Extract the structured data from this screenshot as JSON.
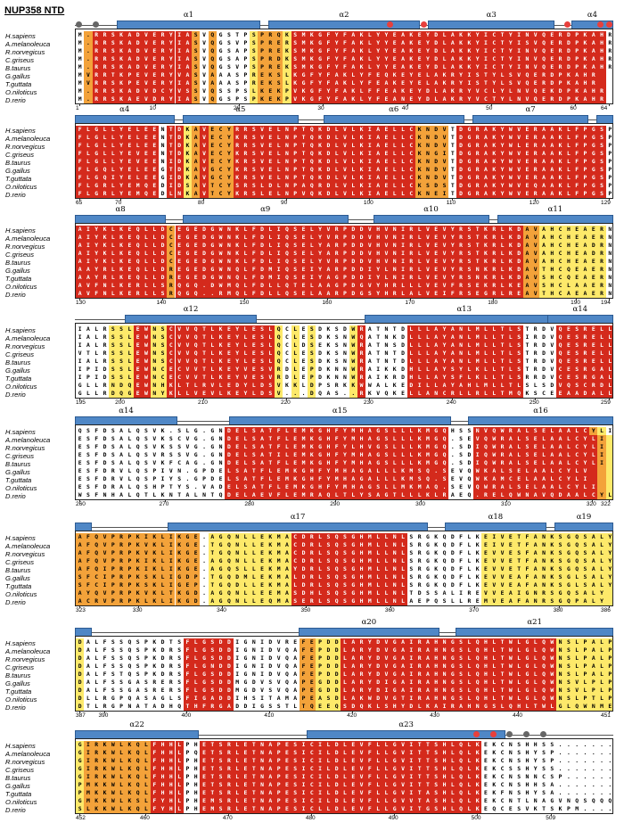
{
  "title": "NUP358 NTD",
  "species": [
    "H.sapiens",
    "A.melanoleuca",
    "R.norvegicus",
    "C.griseus",
    "B.taurus",
    "G.gallus",
    "T.guttata",
    "O.niloticus",
    "D.rerio"
  ],
  "colors": {
    "white": "#ffffff",
    "yellow": "#fde96a",
    "orange": "#f3a23a",
    "red": "#d42a1c",
    "helix": "#4f87c6",
    "dot_red": "#e8403c",
    "dot_grey": "#666666"
  },
  "blocks": [
    {
      "start": 1,
      "end": 64,
      "ticks": [
        1,
        10,
        20,
        30,
        40,
        50,
        60,
        64
      ],
      "helices": [
        {
          "label": "α1",
          "from": 6,
          "to": 22
        },
        {
          "label": "α2",
          "from": 24,
          "to": 41
        },
        {
          "label": "α3",
          "from": 43,
          "to": 57
        },
        {
          "label": "α4",
          "from": 60,
          "to": 64
        }
      ],
      "red_dots": [
        38,
        42,
        59,
        63,
        64
      ],
      "grey_dots": [
        1,
        3
      ],
      "seq": [
        "M.RRSKADVERYIASVQGSTPSPRQKSMKGFYFAKLYYEAKEYDLAKKYICTYINVQERDPKAHR",
        "M.RRSKADVERYIASVQGSVPSPRERSMKGFYFAKLYYEAKEYDLAKKYICTYISVQERDPKAHR",
        "M.RRSKADVERYIASVQGSAPSPREKSMKGFYFAKLYYEAKEYDLAKKYICTYINVQERDPKAHR",
        "M.RRSKADVERYIASVQGSAPSPRDKSMKGFYFAKLYYEAKEYDLAKKYICTYINVQERDPKAHR",
        "M.RRSKADVERYIASVQGSVPSPREKSMKGFYFAKLYYEAKEYDLAKKYICTYINVQERDPKAHR",
        "MVRRTKPEVERYVASVAAASPREKSLKGFYFAKLYFEQKEYELAKRYISTYLSVQERDPKAHR",
        "MVRRSKPEVERYIASVAAASPREKSLKGFYFAKLYFEAKEYELAKRYISTYLSVQERDPKAHR",
        "M.RRSKADVDCYVSSVQSSPSLKEKPVKGFYFAKLFFEAKEYDLAKRYVCLYLNVQEKDPKAHR",
        "M.RRSKAEVDRYIASVQGSPSPKEKPVKGFYFAKLYFEANEYDLAKRYVCTYLNVQERDPKAHR"
      ],
      "grid": [
        "WORRRRRRRRRRRROWOWWWWYOOOYRRRRRRRRRRRRRRRRRRRRRRRRRRRRRRRRRRRRRR",
        "WORRRRRRRRRRRROWOWWWWYOOOYRRRRRRRRRRRRRRRRRRRRRRRRRRRRRRRRRRRRRR",
        "WORRRRRRRRRRRROWOWWWWYOOOYRRRRRRRRRRRRRRRRRRRRRRRRRRRRRRRRRRRRRR",
        "WORRRRRRRRRRRROWOWWWWYOOOYRRRRRRRRRRRRRRRRRRRRRRRRRRRRRRRRRRRRRR",
        "WORRRRRRRRRRRROWOWWWWYOOOYRRRRRRRRRRRRRRRRRRRRRRRRRRRRRRRRRRRRRR",
        "WORRRRRRRRRRRROWOWWWWYOOOYRRRRRRRRRRRRRRRRRRRRRRRRRRRRRRRRRRRRRR",
        "WORRRRRRRRRRRROWOWWWWYOOOYRRRRRRRRRRRRRRRRRRRRRRRRRRRRRRRRRRRRRR",
        "WORRRRRRRRRRRROWOWWWWYOOOYRRRRRRRRRRRRRRRRRRRRRRRRRRRRRRRRRRRRRR",
        "WORRRRRRRRRRRROWOWWWWYOOOYRRRRRRRRRRRRRRRRRRRRRRRRRRRRRRRRRRRRRR"
      ]
    },
    {
      "start": 65,
      "end": 129,
      "ticks": [
        65,
        70,
        80,
        90,
        100,
        110,
        120,
        129
      ],
      "helices": [
        {
          "label": "α4",
          "from": 65,
          "to": 76
        },
        {
          "label": "α5",
          "from": 78,
          "to": 91
        },
        {
          "label": "α6",
          "from": 95,
          "to": 111
        },
        {
          "label": "α7",
          "from": 113,
          "to": 126
        },
        {
          "label": "",
          "from": 128,
          "to": 129
        }
      ],
      "red_dots": [],
      "grey_dots": [],
      "seq": [
        "FLGLLYELEENTDKAVECYRRSVELNPTQKDLVLKIAELLCKNDVTDGRAKYWVERAAKLFPGSP",
        "FLGLLYELEENTDKAVECYKRSVELNPTQKDLVLKIAELLCKNDVTDGRAKYWVERAAKLFPGSP",
        "FLGLLYELEENTDKAVECYRRSVELNPTQKDLVLKIAELLCKNDVTDGRAKYWLERAAKLFPGSP",
        "FLGLLYEVEENTDKAVECYKRSVELNPTQKDLVLKIAELLCKNGITDGRAKYWVERAAKLFPGSP",
        "FLGLLYEVEENIDKAVECYKRSVELNPTQKDLVLKIAELLCKNDVTDGRAKYWVERAAKLFPGSP",
        "FLGQLYELEEGTDKAVGCYKRSVELNPTQKDLVLKIAELLCKNDVTDGRAKYWVERAAKLFPGSP",
        "FLGQIYELEEGIDKAVGCYKRSVELNPTQKDLVLKIAELLCKNDVTDGRAKYWVERAAKLFPGSP",
        "FLGRLYEMQEDIDSAVTCYSRSLDLNPAQRDLVLKIAELLCKSDSTDGRAKYWVEQAAKLFPGSP",
        "FLGRLYEMQEDLNKAVTCYKRSLELNPVQKDLVLKIAELLCKNEITDGRAKYWVERAAKLFPGSP"
      ],
      "grid": [
        "RRRRRRRRRRWRRYOROOORRRRRRRRRRRRRRRRRRRRRROOOOWRRRRRRRRRRRRRRRRRR",
        "RRRRRRRRRRWRRYOROOORRRRRRRRRRRRRRRRRRRRRROOOOWRRRRRRRRRRRRRRRRRR",
        "RRRRRRRRRRWRRYOROOORRRRRRRRRRRRRRRRRRRRRROOOOWRRRRRRRRRRRRRRRRRR",
        "RRRRRRRRRRWRRYOROOORRRRRRRRRRRRRRRRRRRRRROOOOWRRRRRRRRRRRRRRRRRR",
        "RRRRRRRRRRWRRYOROOORRRRRRRRRRRRRRRRRRRRRROOOOWRRRRRRRRRRRRRRRRRR",
        "RRRRRRRRRRWRRYOROOORRRRRRRRRRRRRRRRRRRRRROOOOWRRRRRRRRRRRRRRRRRR",
        "RRRRRRRRRRWRRYOROOORRRRRRRRRRRRRRRRRRRRRROOOOWRRRRRRRRRRRRRRRRRR",
        "RRRRRRRRRRWRRYOROOORRRRRRRRRRRRRRRRRRRRRROOOOWRRRRRRRRRRRRRRRRRR",
        "RRRRRRRRRRWRRYOROOORRRRRRRRRRRRRRRRRRRRRROOOOWRRRRRRRRRRRRRRRRRR"
      ]
    },
    {
      "start": 130,
      "end": 194,
      "ticks": [
        130,
        140,
        150,
        160,
        170,
        180,
        190,
        194
      ],
      "helices": [
        {
          "label": "α8",
          "from": 130,
          "to": 140
        },
        {
          "label": "α9",
          "from": 143,
          "to": 162
        },
        {
          "label": "α10",
          "from": 166,
          "to": 179
        },
        {
          "label": "α11",
          "from": 181,
          "to": 194
        }
      ],
      "red_dots": [],
      "grey_dots": [],
      "seq": [
        "AIYKLKEQLLDCEGEDGWNKLFDLIQSELYVRPDDVHVNIRLVEVYRSTKRLKDAVAHCHEAERN",
        "AIYKLKEQLLDCEGEDGWNKLFDLIQSELYVRPDDVHVNIRLVEVYRSTKRLKDAVAHCHEAERN",
        "AIYKLKEQLLDCEGEDGWNKLFDLIQSELYARPDDVHVNIRLVEVYRSTKRLKDAVAHCHEADRN",
        "AIYKLKEQLLDCEGEDGWNKLFDLIQSELYARPDDVHVNIRLVEVYRSTKRLKDAVAHCHEADRN",
        "AIYKLKEQLLDCEGEDGWNKLFDLIQSELYVRPDDVHVNIRLVEVYRSTKRLKDAVAHCHEAERN",
        "AAYRLKEQLLDREGEDGWNQLFDMIQSEIYARPDDIYLNIRLVEVYRSNKRLKDAVTHCQEAERN",
        "AAYRLKEQLLDREGEDGWNQLFDMIQSEIYAGPDDIYLNIRLVEVYRSNKRLKDAVSHCQEAERN",
        "AVFNLKERLLSRQGQ.DWMQLFDLLQTELAAGPDGVYHRLLLVEVFRSEKRLKEAVSHCLAAERN",
        "AVFNLKERLLSRQGQ..RMQLFDLLQSELAARPDGSYHRLALVEIFRSEGRLREAVTHCAEAERN"
      ],
      "grid": [
        "RRRRRRRRRRRORRRRRRRRRRRRRRRRRRRRRRRRRRRRRRRRRRRRRRRRRROOYYYYYYYY",
        "RRRRRRRRRRRORRRRRRRRRRRRRRRRRRRRRRRRRRRRRRRRRRRRRRRRRROOYYYYYYYY",
        "RRRRRRRRRRRORRRRRRRRRRRRRRRRRRRRRRRRRRRRRRRRRRRRRRRRRROOYYYYYYYY",
        "RRRRRRRRRRRORRRRRRRRRRRRRRRRRRRRRRRRRRRRRRRRRRRRRRRRRROOYYYYYYYY",
        "RRRRRRRRRRRORRRRRRRRRRRRRRRRRRRRRRRRRRRRRRRRRRRRRRRRRROOYYYYYYYY",
        "RRRRRRRRRRRORRRRRRRRRRRRRRRRRRRRRRRRRRRRRRRRRRRRRRRRRROOYYYYYYYY",
        "RRRRRRRRRRRORRRRRRRRRRRRRRRRRRRRRRRRRRRRRRRRRRRRRRRRRROOYYYYYYYY",
        "RRRRRRRRRRRORRRRRRRRRRRRRRRRRRRRRRRRRRRRRRRRRRRRRRRRRROOYYYYYYYY",
        "RRRRRRRRRRRORRRRRRRRRRRRRRRRRRRRRRRRRRRRRRRRRRRRRRRRRROOYYYYYYYY"
      ]
    },
    {
      "start": 195,
      "end": 259,
      "ticks": [
        195,
        200,
        210,
        220,
        230,
        240,
        250,
        259
      ],
      "helices": [
        {
          "label": "α12",
          "from": 201,
          "to": 216
        },
        {
          "label": "α13",
          "from": 230,
          "to": 253
        },
        {
          "label": "α14",
          "from": 252,
          "to": 259
        }
      ],
      "red_dots": [],
      "grey_dots": [],
      "seq": [
        "IALRSSLEWNSCVVQTLKEYLESLQCLESDKSDWRATNTDLLLAYANLMLLTLSTRDVQESRELL",
        "IALRSSLEWNSCVVQTLKEYLESLQCLESDKSNWQATNKDLLLAYANLMLLTLSIRDVQESRELL",
        "IALRSSLEWNSCVVQTLKEYLESLQCLDSEKSNWRATNSDLLLAYANLMLLTLSTRDVQESRELL",
        "VTLRSSLEWNSCVVQTLKEYLESLQCLESDKSNWRATNTDLLLAYANLMLLTLSTRDVQESRELL",
        "IALRSSLEWNSCVVQTLKEYLESLQCLESDKSNWRATNTDLLLAYANLMLLTLSTRDVQESRELL",
        "IPIDSSLEWNCECVVTLKEYVESVRDLEPDKNNWRAIKKDHLLAYSYLKLLTLSTRDVCESRGAL",
        "IPIDSSLEWNCECVVTLKEYVESVRDLEPDKNNWRAIKRDHLLAYSFLKLLTLSRRDVCESRGAL",
        "GLLRNDQEWNHKLTLRVLEDYLDSVKKLDPSRKKWWALKEDILLAYAHLMLLTLSLSDVQSCRDLL",
        "GLLRDQGEWNYKLLVEVLKEYLDSV...DQAS..RKVQKELLANCRLLRLLTMQKSCEEAADALL"
      ],
      "grid": [
        "WWWWYYYRRYYRRRRRRRRRRRRRYWYWYWWWWYRWWWWWRRRRRRRRRRRRRRWWWWRRRRRRR",
        "WWWWYYYRRYYRRRRRRRRRRRRRYWYWYWWWWYRWWWWWRRRRRRRRRRRRRRWWWWRRRRRRR",
        "WWWWYYYRRYYRRRRRRRRRRRRRYWYWYWWWWYRWWWWWRRRRRRRRRRRRRRWWWWRRRRRRR",
        "WWWWYYYRRYYRRRRRRRRRRRRRYWYWYWWWWYRWWWWWRRRRRRRRRRRRRRWWWWRRRRRRR",
        "WWWWYYYRRYYRRRRRRRRRRRRRYWYWYWWWWYRWWWWWRRRRRRRRRRRRRRWWWWRRRRRRR",
        "WWWWYYYRRYYRRRRRRRRRRRRRYWYWYWWWWYRWWWWWRRRRRRRRRRRRRRWWWWRRRRRRR",
        "WWWWYYYRRYYRRRRRRRRRRRRRYWYWYWWWWYRWWWWWRRRRRRRRRRRRRRWWWWRRRRRRR",
        "WWWWYYYRRYYRRRRRRRRRRRRRYWYWYWWWWYRWWWWWRRRRRRRRRRRRRRWWWWRRRRRRR",
        "WWWWYYYRRYYRRRRRRRRRRRRRYWYWYWWWWYRWWWWWRRRRRRRRRRRRRRWWWWRRRRRRR"
      ]
    },
    {
      "start": 260,
      "end": 322,
      "ticks": [
        260,
        270,
        280,
        290,
        300,
        310,
        320,
        322
      ],
      "helices": [
        {
          "label": "α14",
          "from": 260,
          "to": 271
        },
        {
          "label": "α15",
          "from": 278,
          "to": 303
        },
        {
          "label": "α16",
          "from": 306,
          "to": 322
        }
      ],
      "red_dots": [],
      "grey_dots": [],
      "seq": [
        "QSFDSALQSVK.SLG.GNDELSATFLEMKGHFYMHAGSLLLKMGQHSSNVQWRALSELAALCYLI",
        "ESFDSALQSVKSCVG.GNDELSATFLEMKGHFYMHAGSLLLKMGQ.SEVQWRALSELAALCYLI",
        "ESFDSALQSVKSSVG.GNDELSATFLEMKGHFYLHVGSLLLKMGQ.SDIQWRALSELAALCYLI",
        "ESFDSALQSVRSSVG.GNDELSATILEMKGHFYMHAGSLLLKMGQ.SDIQWRALSELAALCYLI",
        "ESFDSALQSVKFCAG.GNDELSATFLEMKGHFYMHAGSLLLKMGQ.SDIQWRALSELAALCYLI",
        "ESFDRVLQSPIVN.GPDELSATFLEMKGHFYMHAGALLLKMSQ.SEVQWKALSELAALCYLV",
        "ESFDRVLQSPIYS.GPDELSATFLEMKGHFYMHAGALLLKMSQ.SEVQWKAMCELAALCYLI",
        "ESFDRALQSHPTYS.VADELSATFLEMKGHFYMHAGSLLMKMAQ.SEVQWRALSELAALCYLI",
        "WSFNHALQTLKNTALNTQDELAEVFLEMRAQLTLYSAGTLLLKLRAEQ.RELQWNAVQDAALCYLV"
      ],
      "grid": [
        "WWWWWWWWWWWWWWWWWWRRRRRRRRRRRRRRRRRRRRRRRRRRRWWWRRRRRRRRRRRRRROY",
        "WWWWWWWWWWWWWWWWWWRRRRRRRRRRRRRRRRRRRRRRRRRRRWWWRRRRRRRRRRRRRRROY",
        "WWWWWWWWWWWWWWWWWWRRRRRRRRRRRRRRRRRRRRRRRRRRRWWWRRRRRRRRRRRRRRROY",
        "WWWWWWWWWWWWWWWWWWRRRRRRRRRRRRRRRRRRRRRRRRRRRWWWRRRRRRRRRRRRRRROY",
        "WWWWWWWWWWWWWWWWWWRRRRRRRRRRRRRRRRRRRRRRRRRRRWWWRRRRRRRRRRRRRRROY",
        "WWWWWWWWWWWWWWWWWWRRRRRRRRRRRRRRRRRRRRRRRRRRRWWWRRRRRRRRRRRRRRROY",
        "WWWWWWWWWWWWWWWWWWRRRRRRRRRRRRRRRRRRRRRRRRRRRWWWRRRRRRRRRRRRRRROY",
        "WWWWWWWWWWWWWWWWWWRRRRRRRRRRRRRRRRRRRRRRRRRRRWWWRRRRRRRRRRRRRRROY",
        "WWWWWWWWWWWWWWWWWWRRRRRRRRRRRRRRRRRRRRRRRRRRRWWWRRRRRRRRRRRRRRROY"
      ]
    },
    {
      "start": 323,
      "end": 386,
      "ticks": [
        323,
        330,
        340,
        350,
        360,
        370,
        380,
        386
      ],
      "helices": [
        {
          "label": "",
          "from": 323,
          "to": 324
        },
        {
          "label": "α17",
          "from": 334,
          "to": 364
        },
        {
          "label": "α18",
          "from": 367,
          "to": 378
        },
        {
          "label": "α19",
          "from": 380,
          "to": 386
        }
      ],
      "red_dots": [],
      "grey_dots": [],
      "seq": [
        "AFQVPRPKIKLIKGE.AGQNLLEKMACDRLSQSGHMLLNLSRGKQDFLKEIVETFANKSGQSALY",
        "AFQVPRPKVKLIKGE.TGQNLLEKMACDRLSQSGHMLLNLSRGKQDFLKEIVETFANKSGQSALY",
        "AFQVPRPKVKLIKGE.TGQNLLEKMACDRLSQSGHMLLNLSRGKQDFLKEVVESFANKSGQSALY",
        "AFQVPRPKIKLIKGE.AGQNLLEKMACDRLSQSGHMLLNLSRGKQDFLKEVVETFANKSGQSALY",
        "AFQIPRPKIKLIKGE.AGQSLLEKMAYDRLSQSGHMLLNLSRGKQDFLKEVVETFANKSGQSALY",
        "SFCIPRPKSKLIGDP.TGQDMLEKMALDRLSQSGHMLLNLSRGKQDFLKEVVEAFANKSGLSALY",
        "SFCIPRPKSKLIGEP.TGQDLLEKMALDRLSQSGHMLLNLSRGKQDFLKEVVEAFANKSGLSALY",
        "AYQVPRPKVKLTKGD.AGQNLLEEMASDHLSQSGHMLLNLTDSSALIREVVEAIGNRSGQSALY",
        "ACRVPRPKLKLIKGD.AGQNLLEQMASERLSQSGHMLLNLAEPQSLLREMVEAFANRSGQPALY"
      ],
      "grid": [
        "OOOOOOOOOOOOOOOWYYYYYYYYYYRRRRRRRRRRRRRRWWWWWWWWWYYYYYYYYYYYYYYYY",
        "OOOOOOOOOOOOOOOWYYYYYYYYYYRRRRRRRRRRRRRRWWWWWWWWWYYYYYYYYYYYYYYYY",
        "OOOOOOOOOOOOOOOWYYYYYYYYYYRRRRRRRRRRRRRRWWWWWWWWWYYYYYYYYYYYYYYYY",
        "OOOOOOOOOOOOOOOWYYYYYYYYYYRRRRRRRRRRRRRRWWWWWWWWWYYYYYYYYYYYYYYYY",
        "OOOOOOOOOOOOOOOWYYYYYYYYYYRRRRRRRRRRRRRRWWWWWWWWWYYYYYYYYYYYYYYYY",
        "OOOOOOOOOOOOOOOWYYYYYYYYYYRRRRRRRRRRRRRRWWWWWWWWWYYYYYYYYYYYYYYYY",
        "OOOOOOOOOOOOOOOWYYYYYYYYYYRRRRRRRRRRRRRRWWWWWWWWWYYYYYYYYYYYYYYYY",
        "OOOOOOOOOOOOOOOWYYYYYYYYYYRRRRRRRRRRRRRRWWWWWWWWWYYYYYYYYYYYYYYYY",
        "OOOOOOOOOOOOOOOWYYYYYYYYYYRRRRRRRRRRRRRRWWWWWWWWWYYYYYYYYYYYYYYYY"
      ]
    },
    {
      "start": 387,
      "end": 451,
      "ticks": [
        387,
        390,
        400,
        410,
        420,
        430,
        440,
        451
      ],
      "helices": [
        {
          "label": "",
          "from": 387,
          "to": 388
        },
        {
          "label": "α20",
          "from": 414,
          "to": 430
        },
        {
          "label": "α21",
          "from": 433,
          "to": 451
        }
      ],
      "red_dots": [],
      "grey_dots": [],
      "seq": [
        "DALFSSQSPKDTSFLGSDDIGNIDVREFEPDDLARYDVGAIRAHNGSLQHLTWLGLQWNSLPALP",
        "DALFSSQSPKDRSFLGSDDIGNIDVQAFEPDDLARYDVGAIRAHNGSLQHLTWLGLQWNSLPALP",
        "DALFSSQSPKDRSFLGSDDIGNIDVQAFEPDDLARYDVGAIRAHNGSLQHLTWLGLQWNSLPALP",
        "DALFSSQSPKDRSFLGNDDIGNIDVQAFEPDDLARYDVGAIRAHNGSLQHLTWLGLQWNSLPALP",
        "DALFSTQSPKDRSFLGSDDIGNIDVQAFEPDDLARYDVGAIRAHNGSLQHLTWLGLQWNSLPALP",
        "DALFSSGASRERSFLGSDDMGDVSVQAPEGDDLARYDIGAIRAHNGSLQHLTWLGLQWNSVLPLP",
        "DALFSSGASRERSFLGSDDMGDVSVQAPEGDDLARYDIGAIRAHNGSLQHLTWLGLQWNSVLPLP",
        "DLLRGPQASAGLSFIGADDIHSITAMAPEASDLAKWDVGTIRAHNGSLQHLTWLGLQWNSLPTLP",
        "DTLRGPNATADHQTHFRGADDIGSSTLTQEEQSDQKLSHYDLKAIRAHNGSLQHLTWLGLQWNMEQKTL"
      ],
      "grid": [
        "YWWWWWWWWWWWWRRRRRRWWWWWWWWOOYYYRRRRRRRRRRRRRRRRRRRRRRRRRRYYYYYYY",
        "YWWWWWWWWWWWWRRRRRRWWWWWWWWOOYYYRRRRRRRRRRRRRRRRRRRRRRRRRRYYYYYYY",
        "YWWWWWWWWWWWWRRRRRRWWWWWWWWOOYYYRRRRRRRRRRRRRRRRRRRRRRRRRRYYYYYYY",
        "YWWWWWWWWWWWWRRRRRRWWWWWWWWOOYYYRRRRRRRRRRRRRRRRRRRRRRRRRRYYYYYYY",
        "YWWWWWWWWWWWWRRRRRRWWWWWWWWOOYYYRRRRRRRRRRRRRRRRRRRRRRRRRRYYYYYYY",
        "YWWWWWWWWWWWWRRRRRRWWWWWWWWOOYYYRRRRRRRRRRRRRRRRRRRRRRRRRRYYYYYYY",
        "YWWWWWWWWWWWWRRRRRRWWWWWWWWOOYYYRRRRRRRRRRRRRRRRRRRRRRRRRRYYYYYYY",
        "YWWWWWWWWWWWWRRRRRRWWWWWWWWOOYYYRRRRRRRRRRRRRRRRRRRRRRRRRRYYYYYYY",
        "YWWWWWWWWWWWWRRRRRRWWWWWWWWOOYYYRRRRRRRRRRRRRRRRRRRRRRRRRRYYYYYYY"
      ]
    },
    {
      "start": 452,
      "end": 516,
      "ticks": [
        452,
        460,
        470,
        480,
        490,
        500,
        509
      ],
      "helices": [
        {
          "label": "α22",
          "from": 452,
          "to": 466
        },
        {
          "label": "α23",
          "from": 480,
          "to": 503
        }
      ],
      "red_dots": [
        500,
        502
      ],
      "grey_dots": [
        504,
        506,
        508
      ],
      "seq": [
        "GIRKWLKQLFHHLPHETSRLETNAPESICILDLEVFLLGVITTSHLQLKEKCNSHHSS.......",
        "GIRKWLKQLFHHLPQETSRLETNAPESICILDLEVFLLGVITTSHLQLKEKCNSHYSP.......",
        "GIRKWLKQLFHHLPHETSRLETNAPESICILDLEVFLLGVITTSHLQLKEKCNSHYSP.......",
        "GIRKWLKQLFHHLPHETSRLETNAPESICILDLEVFLLGVITTSHLQLKEKCSSHYSS.......",
        "GIRKWLKQLFHHLPHETSRLETNAPESICILDLEVFLLGVITTSHLQLKEKCNSNNCSP......",
        "PMKKWLKQLFHHLPHETSRLETNAPESICILDLEVFLLGVITTSHLQLKEKCNSHHSA.......",
        "PMKKWLKQLFHHLPHETSRLETNAPESICILDLEVFLLGVITASHLQLKEKFNSHYSA.......",
        "GMKKWLKSLFYHLPHEMSRLETNAPESICILDLEVFLLGVVTASHLQLKEKCNTLNAGVNQSQQQ",
        "SLKKWLKQLFYHLPHEMSRLETNAPESICLLDLEVFLLGVITGSHLQLKEQCESVKTSKPM...."
      ],
      "grid": [
        "YOOOOOOOORRRRWWRRRRRRRRRRRRRRRRRRRRRRRRRRRRRRRRRRWWWWWWWWWWWWWWW",
        "YOOOOOOOORRRRWWRRRRRRRRRRRRRRRRRRRRRRRRRRRRRRRRRRWWWWWWWWWWWWWWW",
        "YOOOOOOOORRRRWWRRRRRRRRRRRRRRRRRRRRRRRRRRRRRRRRRRWWWWWWWWWWWWWWW",
        "YOOOOOOOORRRRWWRRRRRRRRRRRRRRRRRRRRRRRRRRRRRRRRRRWWWWWWWWWWWWWWW",
        "YOOOOOOOORRRRWWRRRRRRRRRRRRRRRRRRRRRRRRRRRRRRRRRRWWWWWWWWWWWWWWW",
        "YOOOOOOOORRRRWWRRRRRRRRRRRRRRRRRRRRRRRRRRRRRRRRRRWWWWWWWWWWWWWWW",
        "YOOOOOOOORRRRWWRRRRRRRRRRRRRRRRRRRRRRRRRRRRRRRRRRWWWWWWWWWWWWWWW",
        "YOOOOOOOORRRRWWRRRRRRRRRRRRRRRRRRRRRRRRRRRRRRRRRRWWWWWWWWWWWWWWW",
        "YOOOOOOOORRRRWWRRRRRRRRRRRRRRRRRRRRRRRRRRRRRRRRRRWWWWWWWWWWWWWWW"
      ]
    }
  ]
}
